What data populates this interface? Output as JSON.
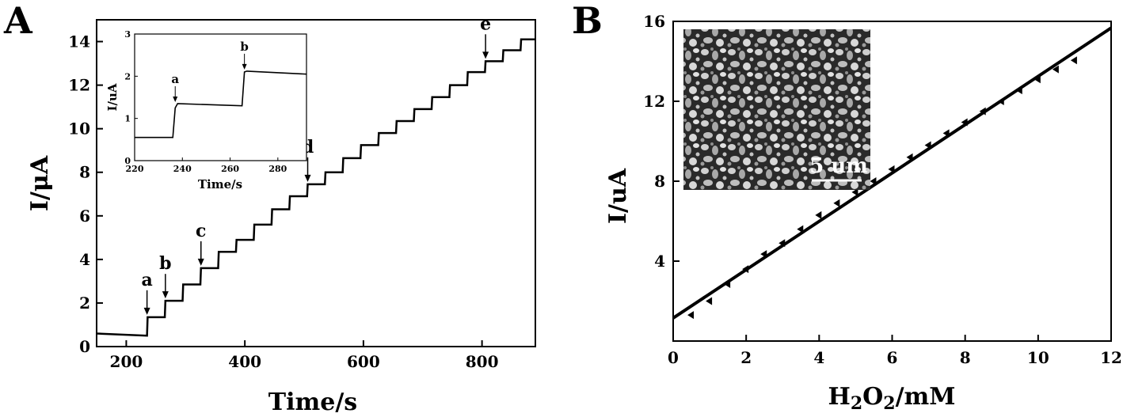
{
  "chart_data": [
    {
      "type": "line",
      "panel_label": "A",
      "xlabel": "Time/s",
      "ylabel": "I/μA",
      "xlim": [
        150,
        890
      ],
      "ylim": [
        0,
        15
      ],
      "x_ticks": [
        "200",
        "400",
        "600",
        "800"
      ],
      "y_ticks": [
        "0",
        "2",
        "4",
        "6",
        "8",
        "10",
        "12",
        "14"
      ],
      "series": [
        {
          "x": [
            150,
            235,
            236,
            265,
            266,
            295,
            296,
            325,
            326,
            355,
            356,
            385,
            386,
            415,
            416,
            445,
            446,
            475,
            476,
            505,
            506,
            535,
            536,
            565,
            566,
            595,
            596,
            625,
            626,
            655,
            656,
            685,
            686,
            715,
            716,
            745,
            746,
            775,
            776,
            805,
            806,
            835,
            836,
            865,
            866,
            890
          ],
          "y": [
            0.6,
            0.5,
            1.35,
            1.35,
            2.1,
            2.1,
            2.85,
            2.85,
            3.6,
            3.6,
            4.35,
            4.35,
            4.9,
            4.9,
            5.6,
            5.6,
            6.3,
            6.3,
            6.9,
            6.9,
            7.45,
            7.45,
            8.0,
            8.0,
            8.65,
            8.65,
            9.25,
            9.25,
            9.8,
            9.8,
            10.35,
            10.35,
            10.9,
            10.9,
            11.45,
            11.45,
            12.0,
            12.0,
            12.6,
            12.6,
            13.1,
            13.1,
            13.6,
            13.6,
            14.1,
            14.1
          ]
        }
      ],
      "annotations": [
        {
          "label": "a",
          "x": 235,
          "y": 1.35
        },
        {
          "label": "b",
          "x": 266,
          "y": 2.1
        },
        {
          "label": "c",
          "x": 326,
          "y": 3.6
        },
        {
          "label": "d",
          "x": 506,
          "y": 7.45
        },
        {
          "label": "e",
          "x": 806,
          "y": 13.1
        }
      ],
      "inset": {
        "type": "line",
        "xlabel": "Time/s",
        "ylabel": "I/uA",
        "xlim": [
          220,
          292
        ],
        "ylim": [
          0,
          3
        ],
        "x_ticks": [
          "220",
          "240",
          "260",
          "280"
        ],
        "y_ticks": [
          "0",
          "1",
          "2",
          "3"
        ],
        "x": [
          220,
          236,
          237,
          238,
          265,
          266,
          267,
          292
        ],
        "y": [
          0.55,
          0.55,
          1.25,
          1.35,
          1.3,
          2.1,
          2.12,
          2.05
        ],
        "annotations": [
          {
            "label": "a",
            "x": 237,
            "y": 1.35
          },
          {
            "label": "b",
            "x": 266,
            "y": 2.12
          }
        ]
      }
    },
    {
      "type": "scatter",
      "panel_label": "B",
      "xlabel": "H2O2/mM",
      "xlabel_parts": {
        "p1": "H",
        "sub1": "2",
        "p2": "O",
        "sub2": "2",
        "p3": "/mM"
      },
      "ylabel": "I/uA",
      "xlim": [
        0,
        12
      ],
      "ylim": [
        0,
        16
      ],
      "x_ticks": [
        "0",
        "2",
        "4",
        "6",
        "8",
        "10",
        "12"
      ],
      "y_ticks": [
        "4",
        "8",
        "12",
        "16"
      ],
      "points": {
        "x": [
          0.5,
          1.0,
          1.5,
          2.0,
          2.5,
          3.0,
          3.5,
          4.0,
          4.5,
          5.0,
          5.5,
          6.0,
          6.5,
          7.0,
          7.5,
          8.0,
          8.5,
          9.0,
          9.5,
          10.0,
          10.5,
          11.0
        ],
        "y": [
          1.3,
          2.0,
          2.85,
          3.6,
          4.35,
          4.9,
          5.6,
          6.3,
          6.9,
          7.45,
          8.0,
          8.6,
          9.2,
          9.8,
          10.4,
          10.95,
          11.5,
          12.0,
          12.55,
          13.1,
          13.6,
          14.05
        ]
      },
      "fit": {
        "slope": 1.21,
        "intercept": 1.15
      },
      "inset_scale_label": "5 um"
    }
  ]
}
